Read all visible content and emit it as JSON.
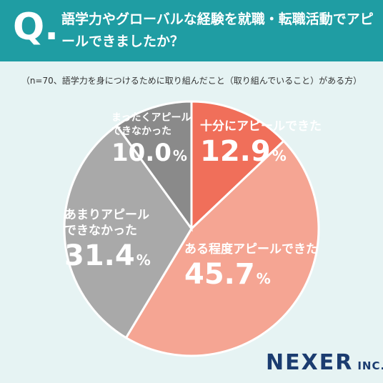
{
  "header": {
    "q_mark": "Q.",
    "question": "語学力やグローバルな経験を就職・転職活動でアピールできましたか？"
  },
  "subtitle": "（n=70、語学力を身につけるために取り組んだこと（取り組んでいること）がある方）",
  "chart_data": {
    "type": "pie",
    "categories": [
      "十分にアピールできた",
      "ある程度アピールできた",
      "あまりアピールできなかった",
      "まったくアピールできなかった"
    ],
    "values": [
      12.9,
      45.7,
      31.4,
      10.0
    ],
    "colors": [
      "#f06f5a",
      "#f5a593",
      "#a9a9a9",
      "#8a8a8a"
    ],
    "start": "12 o'clock, clockwise",
    "labels": {
      "a": {
        "name": "十分にアピールできた",
        "value": "12.9",
        "unit": "%"
      },
      "b": {
        "name": "ある程度アピールできた",
        "value": "45.7",
        "unit": "%"
      },
      "c": {
        "name1": "あまりアピール",
        "name2": "できなかった",
        "value": "31.4",
        "unit": "%"
      },
      "d": {
        "name1": "まったくアピール",
        "name2": "できなかった",
        "value": "10.0",
        "unit": "%"
      }
    }
  },
  "logo": {
    "main": "NEXER",
    "inc": "INC."
  }
}
